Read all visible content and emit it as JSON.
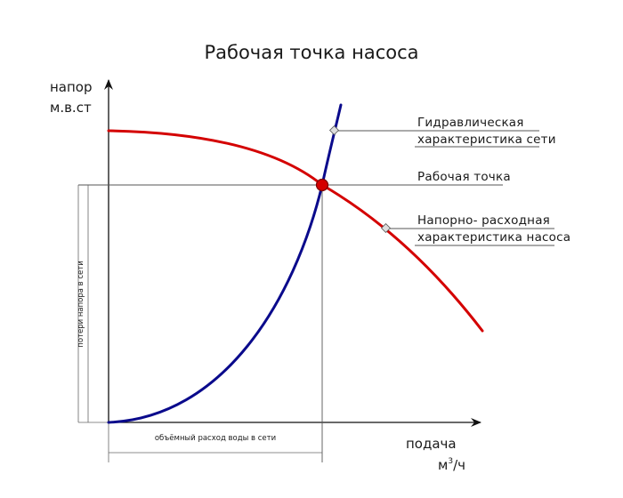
{
  "title": "Рабочая точка насоса",
  "y_axis": {
    "line1": "напор",
    "line2": "м.в.ст"
  },
  "x_axis": {
    "line1": "подача",
    "unit_base": "м",
    "unit_sup": "3",
    "unit_tail": "/ч"
  },
  "callouts": {
    "network_line1": "Гидравлическая",
    "network_line2": "характеристика сети",
    "operating_point": "Рабочая точка",
    "pump_line1": "Напорно- расходная",
    "pump_line2": "характеристика насоса"
  },
  "dimensions": {
    "head_loss": "потери напора в сети",
    "flow_volume": "объёмный расход воды в сети"
  },
  "colors": {
    "pump_curve": "#d40000",
    "network_curve": "#0a0a8c",
    "operating_point_fill": "#d40000",
    "operating_point_stroke": "#7a0000",
    "axis": "#111111",
    "guide_line": "#888888"
  }
}
